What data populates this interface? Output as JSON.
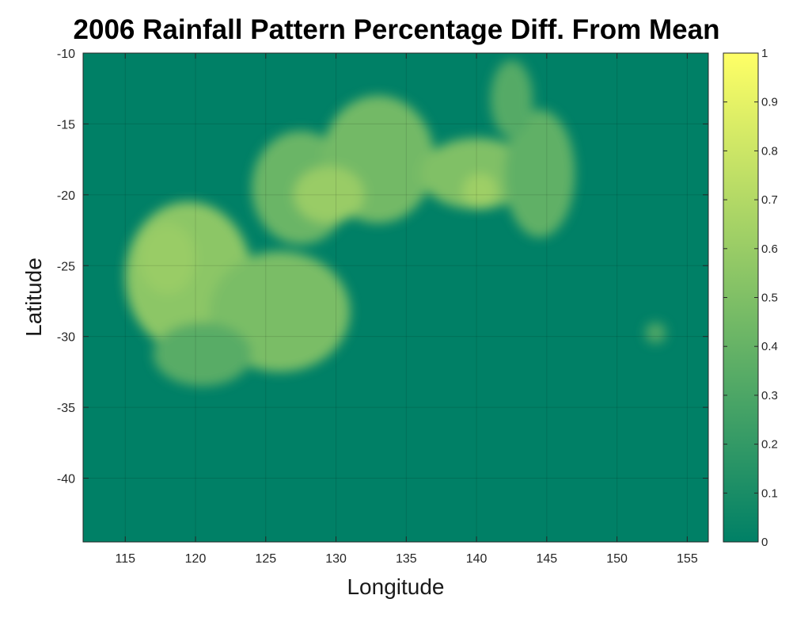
{
  "chart_data": {
    "type": "heatmap",
    "title": "2006 Rainfall Pattern Percentage Diff. From Mean",
    "xlabel": "Longitude",
    "ylabel": "Latitude",
    "xlim": [
      112,
      156.5
    ],
    "ylim": [
      -44.5,
      -10
    ],
    "x_ticks": [
      115,
      120,
      125,
      130,
      135,
      140,
      145,
      150,
      155
    ],
    "x_tick_labels": [
      "115",
      "120",
      "125",
      "130",
      "135",
      "140",
      "145",
      "150",
      "155"
    ],
    "y_ticks": [
      -10,
      -15,
      -20,
      -25,
      -30,
      -35,
      -40
    ],
    "y_tick_labels": [
      "-10",
      "-15",
      "-20",
      "-25",
      "-30",
      "-35",
      "-40"
    ],
    "grid": true,
    "colormap": "summer",
    "colormap_start": "#008066",
    "colormap_end": "#ffff66",
    "background_value": 0,
    "colorbar": {
      "limits": [
        0,
        1
      ],
      "ticks": [
        0,
        0.1,
        0.2,
        0.3,
        0.4,
        0.5,
        0.6,
        0.7,
        0.8,
        0.9,
        1
      ],
      "tick_labels": [
        "0",
        "0.1",
        "0.2",
        "0.3",
        "0.4",
        "0.5",
        "0.6",
        "0.7",
        "0.8",
        "0.9",
        "1"
      ]
    },
    "regions": [
      {
        "lon": [
          115,
          124
        ],
        "lat": [
          -31,
          -20.5
        ],
        "value": 0.55
      },
      {
        "lon": [
          116,
          120
        ],
        "lat": [
          -27,
          -22
        ],
        "value": 0.6
      },
      {
        "lon": [
          121,
          131
        ],
        "lat": [
          -32.5,
          -24
        ],
        "value": 0.48
      },
      {
        "lon": [
          117,
          124
        ],
        "lat": [
          -33.5,
          -29
        ],
        "value": 0.35
      },
      {
        "lon": [
          124,
          131
        ],
        "lat": [
          -23.5,
          -15.5
        ],
        "value": 0.42
      },
      {
        "lon": [
          129,
          137
        ],
        "lat": [
          -22,
          -13
        ],
        "value": 0.45
      },
      {
        "lon": [
          136,
          144
        ],
        "lat": [
          -21,
          -16
        ],
        "value": 0.5
      },
      {
        "lon": [
          142,
          147
        ],
        "lat": [
          -23,
          -14
        ],
        "value": 0.38
      },
      {
        "lon": [
          141,
          144
        ],
        "lat": [
          -16,
          -10.5
        ],
        "value": 0.33
      },
      {
        "lon": [
          127,
          132
        ],
        "lat": [
          -22,
          -18
        ],
        "value": 0.6
      },
      {
        "lon": [
          139,
          141.5
        ],
        "lat": [
          -21,
          -18.5
        ],
        "value": 0.62
      },
      {
        "lon": [
          152,
          153.5
        ],
        "lat": [
          -30.5,
          -29
        ],
        "value": 0.3
      }
    ]
  }
}
